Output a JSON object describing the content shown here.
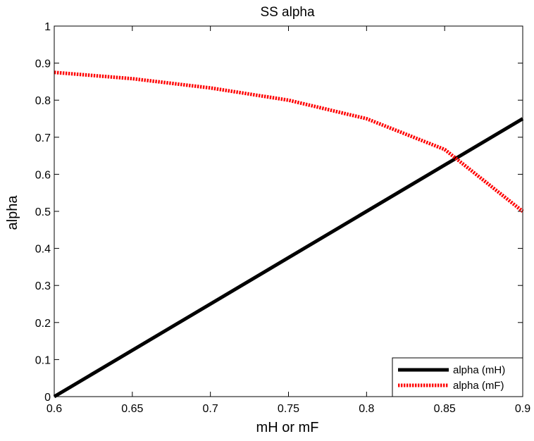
{
  "chart_data": {
    "type": "line",
    "title": "SS alpha",
    "xlabel": "mH or mF",
    "ylabel": "alpha",
    "xlim": [
      0.6,
      0.9
    ],
    "ylim": [
      0,
      1
    ],
    "xticks": [
      "0.6",
      "0.65",
      "0.7",
      "0.75",
      "0.8",
      "0.85",
      "0.9"
    ],
    "yticks": [
      "0",
      "0.1",
      "0.2",
      "0.3",
      "0.4",
      "0.5",
      "0.6",
      "0.7",
      "0.8",
      "0.9",
      "1"
    ],
    "grid": false,
    "legend_position": "bottom-right",
    "series": [
      {
        "name": "alpha (mH)",
        "color": "#000000",
        "style": "solid",
        "x": [
          0.6,
          0.9
        ],
        "y": [
          0.0,
          0.75
        ]
      },
      {
        "name": "alpha (mF)",
        "color": "#ff0000",
        "style": "dotted",
        "x": [
          0.6,
          0.65,
          0.7,
          0.75,
          0.8,
          0.85,
          0.9
        ],
        "y": [
          0.875,
          0.858,
          0.833,
          0.8,
          0.75,
          0.667,
          0.5
        ]
      }
    ]
  }
}
